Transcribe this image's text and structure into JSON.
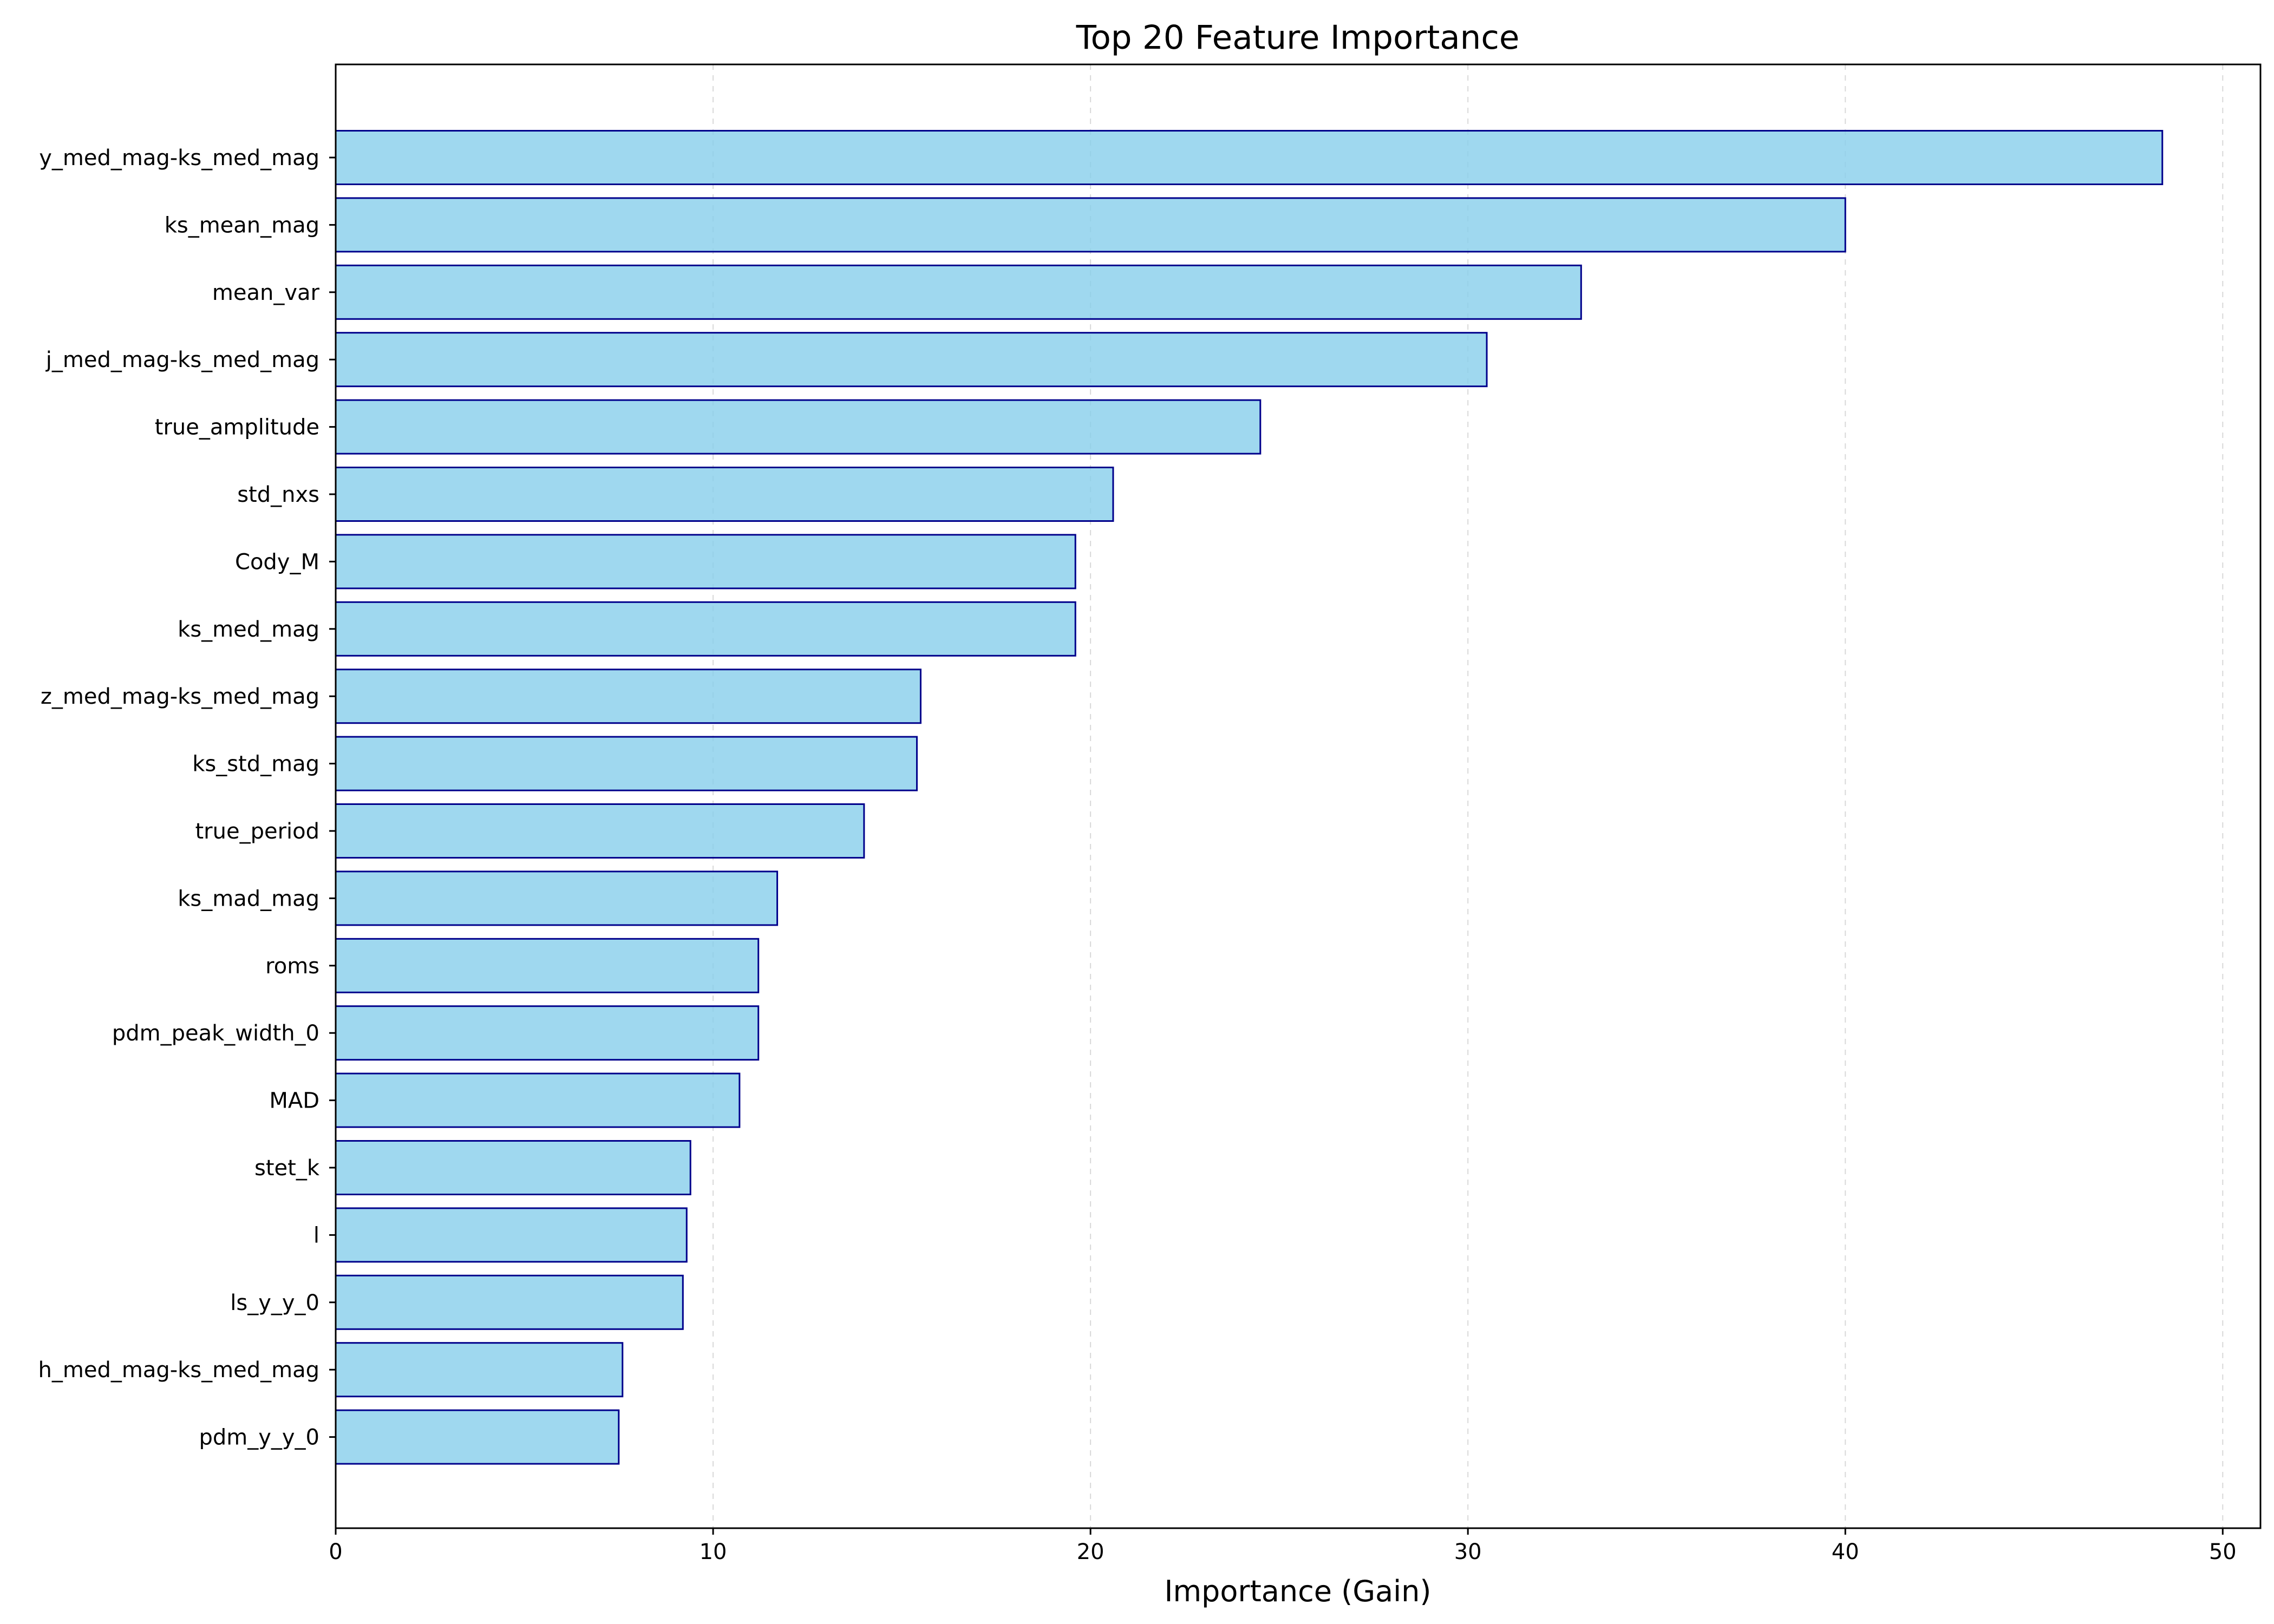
{
  "chart_data": {
    "type": "bar",
    "orientation": "horizontal",
    "title": "Top 20 Feature Importance",
    "xlabel": "Importance (Gain)",
    "ylabel": "",
    "xlim": [
      0,
      51
    ],
    "xticks": [
      0,
      10,
      20,
      30,
      40,
      50
    ],
    "grid": "vertical dashed",
    "categories": [
      "y_med_mag-ks_med_mag",
      "ks_mean_mag",
      "mean_var",
      "j_med_mag-ks_med_mag",
      "true_amplitude",
      "std_nxs",
      "Cody_M",
      "ks_med_mag",
      "z_med_mag-ks_med_mag",
      "ks_std_mag",
      "true_period",
      "ks_mad_mag",
      "roms",
      "pdm_peak_width_0",
      "MAD",
      "stet_k",
      "l",
      "ls_y_y_0",
      "h_med_mag-ks_med_mag",
      "pdm_y_y_0"
    ],
    "values": [
      48.4,
      40.0,
      33.0,
      30.5,
      24.5,
      20.6,
      19.6,
      19.6,
      15.5,
      15.4,
      14.0,
      11.7,
      11.2,
      11.2,
      10.7,
      9.4,
      9.3,
      9.2,
      7.6,
      7.5
    ],
    "colors": {
      "bar_fill": "#87ceeb",
      "bar_edge": "#00008b",
      "grid": "#d9d9d9"
    }
  }
}
